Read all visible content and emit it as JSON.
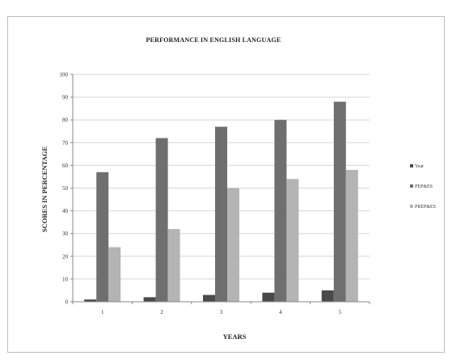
{
  "chart_data": {
    "type": "bar",
    "title": "PERFORMANCE IN ENGLISH LANGUAGE",
    "xlabel": "YEARS",
    "ylabel": "SCORES IN PERCENTAGE",
    "categories": [
      "1",
      "2",
      "3",
      "4",
      "5"
    ],
    "yticks": [
      "0",
      "10",
      "20",
      "30",
      "40",
      "50",
      "60",
      "70",
      "80",
      "90",
      "100"
    ],
    "ylim": [
      0,
      100
    ],
    "grid": true,
    "legend_position": "right",
    "series": [
      {
        "name": "Year",
        "values": [
          1,
          2,
          3,
          4,
          5
        ],
        "color": "#4a4a4a"
      },
      {
        "name": "PEP&ES",
        "values": [
          57,
          72,
          77,
          80,
          88
        ],
        "color": "#6f6f6f"
      },
      {
        "name": "PREP&ES",
        "values": [
          24,
          32,
          50,
          54,
          58
        ],
        "color": "#b4b4b4"
      }
    ]
  }
}
